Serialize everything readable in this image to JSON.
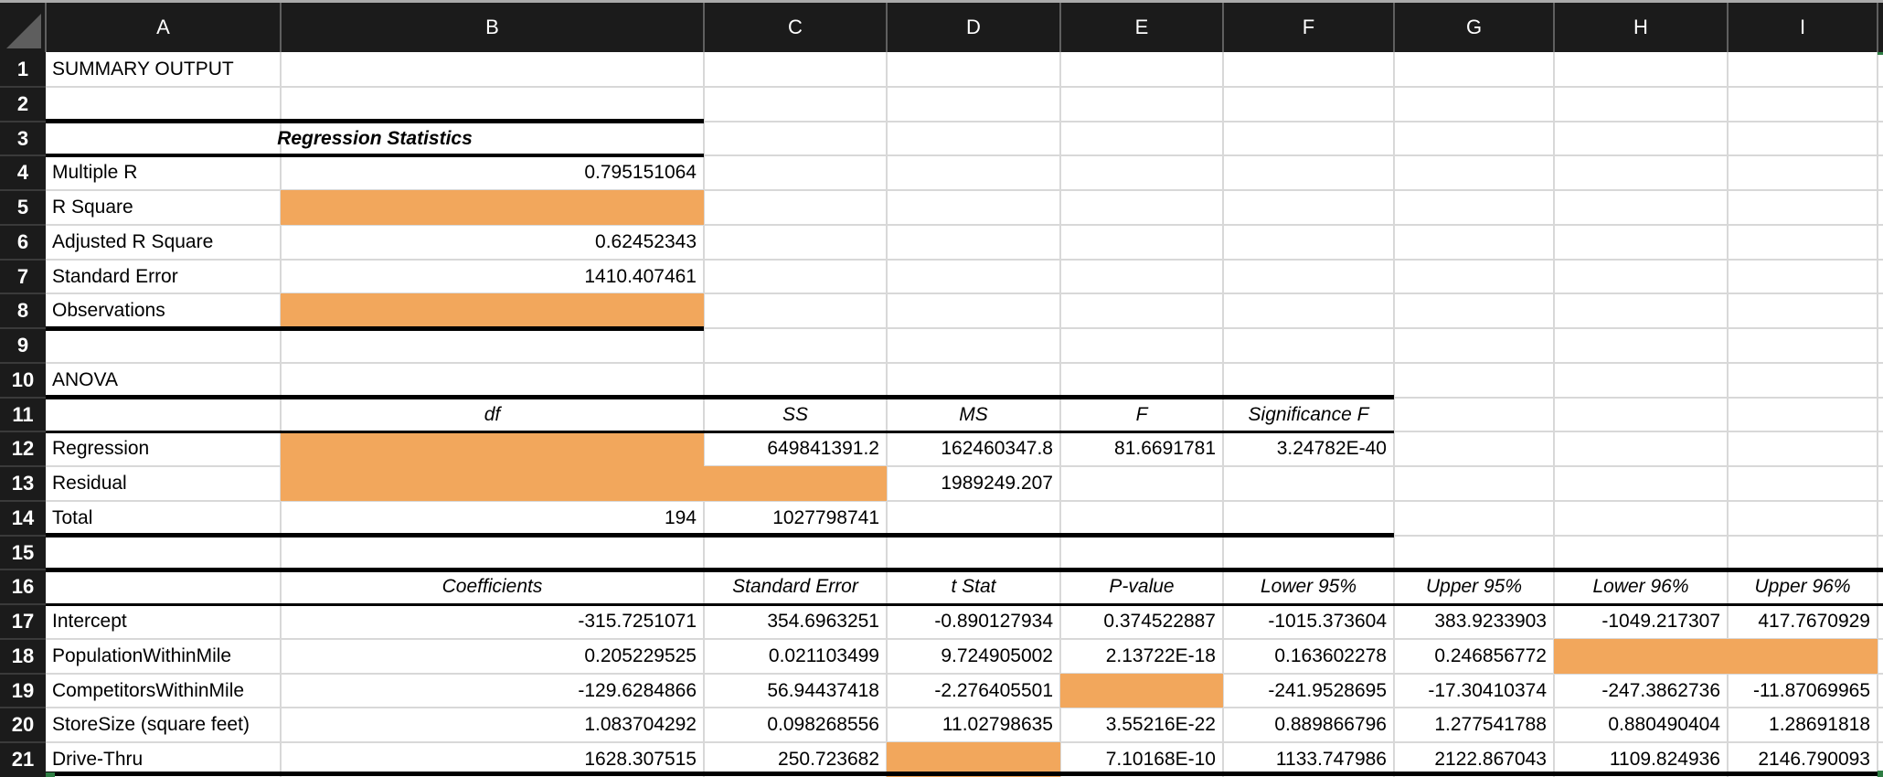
{
  "app": {
    "kind": "spreadsheet-regression-summary"
  },
  "colors": {
    "header_bg": "#1B1B1B",
    "header_text": "#FFFFFF",
    "header_separator": "#5F5F5F",
    "gutter_separator": "#3A3A3A",
    "top_strip": "#ABABAB",
    "corner_triangle": "#5E5E5E",
    "grid_line": "#D8D8D8",
    "accent_fill": "#F2A75C",
    "border_black": "#000000",
    "selection_green": "#2E7D43"
  },
  "grid": {
    "column_headers": [
      "A",
      "B",
      "C",
      "D",
      "E",
      "F",
      "G",
      "H",
      "I"
    ],
    "row_numbers": [
      "1",
      "2",
      "3",
      "4",
      "5",
      "6",
      "7",
      "8",
      "9",
      "10",
      "11",
      "12",
      "13",
      "14",
      "15",
      "16",
      "17",
      "18",
      "19",
      "20",
      "21"
    ],
    "cells": [
      {
        "ref": "A1",
        "text": "SUMMARY OUTPUT",
        "align": "left"
      },
      {
        "ref": "A3:B3",
        "text": "Regression Statistics",
        "align": "center",
        "style": "bold-italic"
      },
      {
        "ref": "A4",
        "text": "Multiple R",
        "align": "left"
      },
      {
        "ref": "B4",
        "text": "0.795151064",
        "align": "right"
      },
      {
        "ref": "A5",
        "text": "R Square",
        "align": "left"
      },
      {
        "ref": "B5",
        "fill": true
      },
      {
        "ref": "A6",
        "text": "Adjusted R Square",
        "align": "left"
      },
      {
        "ref": "B6",
        "text": "0.62452343",
        "align": "right"
      },
      {
        "ref": "A7",
        "text": "Standard Error",
        "align": "left"
      },
      {
        "ref": "B7",
        "text": "1410.407461",
        "align": "right"
      },
      {
        "ref": "A8",
        "text": "Observations",
        "align": "left"
      },
      {
        "ref": "B8",
        "fill": true
      },
      {
        "ref": "A10",
        "text": "ANOVA",
        "align": "left"
      },
      {
        "ref": "B11",
        "text": "df",
        "align": "center",
        "style": "italic"
      },
      {
        "ref": "C11",
        "text": "SS",
        "align": "center",
        "style": "italic"
      },
      {
        "ref": "D11",
        "text": "MS",
        "align": "center",
        "style": "italic"
      },
      {
        "ref": "E11",
        "text": "F",
        "align": "center",
        "style": "italic"
      },
      {
        "ref": "F11",
        "text": "Significance F",
        "align": "center",
        "style": "italic"
      },
      {
        "ref": "A12",
        "text": "Regression",
        "align": "left"
      },
      {
        "ref": "B12",
        "fill": true
      },
      {
        "ref": "C12",
        "text": "649841391.2",
        "align": "right"
      },
      {
        "ref": "D12",
        "text": "162460347.8",
        "align": "right"
      },
      {
        "ref": "E12",
        "text": "81.6691781",
        "align": "right"
      },
      {
        "ref": "F12",
        "text": "3.24782E-40",
        "align": "right"
      },
      {
        "ref": "A13",
        "text": "Residual",
        "align": "left"
      },
      {
        "ref": "B13:C13",
        "fill": true
      },
      {
        "ref": "D13",
        "text": "1989249.207",
        "align": "right"
      },
      {
        "ref": "A14",
        "text": "Total",
        "align": "left"
      },
      {
        "ref": "B14",
        "text": "194",
        "align": "right"
      },
      {
        "ref": "C14",
        "text": "1027798741",
        "align": "right"
      },
      {
        "ref": "B16",
        "text": "Coefficients",
        "align": "center",
        "style": "italic"
      },
      {
        "ref": "C16",
        "text": "Standard Error",
        "align": "center",
        "style": "italic"
      },
      {
        "ref": "D16",
        "text": "t Stat",
        "align": "center",
        "style": "italic"
      },
      {
        "ref": "E16",
        "text": "P-value",
        "align": "center",
        "style": "italic"
      },
      {
        "ref": "F16",
        "text": "Lower 95%",
        "align": "center",
        "style": "italic"
      },
      {
        "ref": "G16",
        "text": "Upper 95%",
        "align": "center",
        "style": "italic"
      },
      {
        "ref": "H16",
        "text": "Lower 96%",
        "align": "center",
        "style": "italic"
      },
      {
        "ref": "I16",
        "text": "Upper 96%",
        "align": "center",
        "style": "italic"
      },
      {
        "ref": "A17",
        "text": "Intercept",
        "align": "left"
      },
      {
        "ref": "B17",
        "text": "-315.7251071",
        "align": "right"
      },
      {
        "ref": "C17",
        "text": "354.6963251",
        "align": "right"
      },
      {
        "ref": "D17",
        "text": "-0.890127934",
        "align": "right"
      },
      {
        "ref": "E17",
        "text": "0.374522887",
        "align": "right"
      },
      {
        "ref": "F17",
        "text": "-1015.373604",
        "align": "right"
      },
      {
        "ref": "G17",
        "text": "383.9233903",
        "align": "right"
      },
      {
        "ref": "H17",
        "text": "-1049.217307",
        "align": "right"
      },
      {
        "ref": "I17",
        "text": "417.7670929",
        "align": "right"
      },
      {
        "ref": "A18",
        "text": "PopulationWithinMile",
        "align": "left"
      },
      {
        "ref": "B18",
        "text": "0.205229525",
        "align": "right"
      },
      {
        "ref": "C18",
        "text": "0.021103499",
        "align": "right"
      },
      {
        "ref": "D18",
        "text": "9.724905002",
        "align": "right"
      },
      {
        "ref": "E18",
        "text": "2.13722E-18",
        "align": "right"
      },
      {
        "ref": "F18",
        "text": "0.163602278",
        "align": "right"
      },
      {
        "ref": "G18",
        "text": "0.246856772",
        "align": "right"
      },
      {
        "ref": "H18:I18",
        "fill": true
      },
      {
        "ref": "A19",
        "text": "CompetitorsWithinMile",
        "align": "left"
      },
      {
        "ref": "B19",
        "text": "-129.6284866",
        "align": "right"
      },
      {
        "ref": "C19",
        "text": "56.94437418",
        "align": "right"
      },
      {
        "ref": "D19",
        "text": "-2.276405501",
        "align": "right"
      },
      {
        "ref": "E19",
        "fill": true
      },
      {
        "ref": "F19",
        "text": "-241.9528695",
        "align": "right"
      },
      {
        "ref": "G19",
        "text": "-17.30410374",
        "align": "right"
      },
      {
        "ref": "H19",
        "text": "-247.3862736",
        "align": "right"
      },
      {
        "ref": "I19",
        "text": "-11.87069965",
        "align": "right"
      },
      {
        "ref": "A20",
        "text": "StoreSize (square feet)",
        "align": "left"
      },
      {
        "ref": "B20",
        "text": "1.083704292",
        "align": "right"
      },
      {
        "ref": "C20",
        "text": "0.098268556",
        "align": "right"
      },
      {
        "ref": "D20",
        "text": "11.02798635",
        "align": "right"
      },
      {
        "ref": "E20",
        "text": "3.55216E-22",
        "align": "right"
      },
      {
        "ref": "F20",
        "text": "0.889866796",
        "align": "right"
      },
      {
        "ref": "G20",
        "text": "1.277541788",
        "align": "right"
      },
      {
        "ref": "H20",
        "text": "0.880490404",
        "align": "right"
      },
      {
        "ref": "I20",
        "text": "1.28691818",
        "align": "right"
      },
      {
        "ref": "A21",
        "text": "Drive-Thru",
        "align": "left"
      },
      {
        "ref": "B21",
        "text": "1628.307515",
        "align": "right"
      },
      {
        "ref": "C21",
        "text": "250.723682",
        "align": "right"
      },
      {
        "ref": "D21",
        "fill": true
      },
      {
        "ref": "E21",
        "text": "7.10168E-10",
        "align": "right"
      },
      {
        "ref": "F21",
        "text": "1133.747986",
        "align": "right"
      },
      {
        "ref": "G21",
        "text": "2122.867043",
        "align": "right"
      },
      {
        "ref": "H21",
        "text": "1109.824936",
        "align": "right"
      },
      {
        "ref": "I21",
        "text": "2146.790093",
        "align": "right"
      }
    ]
  }
}
